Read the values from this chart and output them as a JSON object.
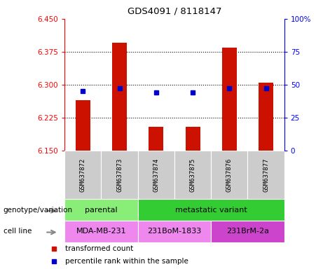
{
  "title": "GDS4091 / 8118147",
  "samples": [
    "GSM637872",
    "GSM637873",
    "GSM637874",
    "GSM637875",
    "GSM637876",
    "GSM637877"
  ],
  "red_values": [
    6.265,
    6.395,
    6.205,
    6.205,
    6.385,
    6.305
  ],
  "blue_values": [
    6.285,
    6.292,
    6.282,
    6.282,
    6.292,
    6.292
  ],
  "ylim_left": [
    6.15,
    6.45
  ],
  "ylim_right": [
    0,
    100
  ],
  "yticks_left": [
    6.15,
    6.225,
    6.3,
    6.375,
    6.45
  ],
  "yticks_right": [
    0,
    25,
    50,
    75,
    100
  ],
  "ytick_labels_right": [
    "0",
    "25",
    "50",
    "75",
    "100%"
  ],
  "bar_color": "#cc1100",
  "dot_color": "#0000cc",
  "bar_width": 0.4,
  "grid_lines": [
    6.225,
    6.3,
    6.375
  ],
  "parental_color": "#88ee77",
  "metastatic_color": "#33cc33",
  "cell1_color": "#ee88ee",
  "cell2_color": "#ee88ee",
  "cell3_color": "#cc44cc",
  "left_label_genotype": "genotype/variation",
  "left_label_cell": "cell line",
  "legend_red": "transformed count",
  "legend_blue": "percentile rank within the sample",
  "fig_width": 4.61,
  "fig_height": 3.84,
  "dpi": 100
}
